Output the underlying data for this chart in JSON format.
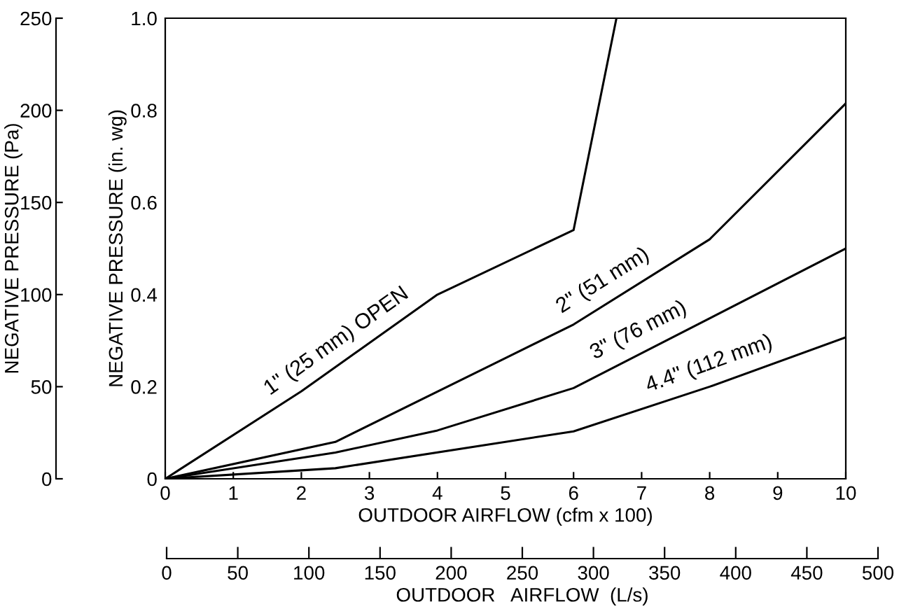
{
  "chart_data": {
    "type": "line",
    "xlabel": "OUTDOOR AIRFLOW (cfm x 100)",
    "ylabel": "NEGATIVE PRESSURE (in. wg)",
    "y2label": "NEGATIVE PRESSURE (Pa)",
    "x2label": "OUTDOOR   AIRFLOW  (L/s)",
    "series": [
      {
        "color": "#000000",
        "x": [
          0,
          2,
          4,
          6,
          6.63
        ],
        "values": [
          0,
          0.19,
          0.4,
          0.54,
          1.0
        ]
      },
      {
        "color": "#000000",
        "x": [
          0,
          2.5,
          6,
          8,
          10
        ],
        "values": [
          0,
          0.08,
          0.335,
          0.52,
          0.815
        ]
      },
      {
        "color": "#000000",
        "x": [
          0,
          2.5,
          4,
          6,
          10
        ],
        "values": [
          0,
          0.057,
          0.105,
          0.197,
          0.5
        ]
      },
      {
        "color": "#000000",
        "x": [
          0,
          2.5,
          6,
          8,
          10
        ],
        "values": [
          0,
          0.023,
          0.103,
          0.2,
          0.307
        ]
      }
    ],
    "annotations": [
      {
        "text": "1\" (25 mm) OPEN",
        "x": 2.7,
        "y": 0.26
      },
      {
        "text": "2\" (51 mm)",
        "x": 6.6,
        "y": 0.39
      },
      {
        "text": "3\" (76 mm)",
        "x": 7.1,
        "y": 0.28
      },
      {
        "text": "4.4\" (112 mm)",
        "x": 8.1,
        "y": 0.205
      }
    ],
    "xlim": [
      0,
      10
    ],
    "xticks": [
      0,
      1,
      2,
      3,
      4,
      5,
      6,
      7,
      8,
      9,
      10
    ],
    "ylim": [
      0,
      1.0
    ],
    "yticks": [
      0,
      0.2,
      0.4,
      0.6,
      0.8,
      {
        "value": 1,
        "label": "1.0"
      }
    ],
    "y2lim": [
      0,
      250
    ],
    "y2ticks": [
      0,
      50,
      100,
      150,
      200,
      250
    ],
    "x2lim": [
      0,
      500
    ],
    "x2ticks": [
      0,
      50,
      100,
      150,
      200,
      250,
      300,
      350,
      400,
      450,
      500
    ],
    "grid": false,
    "legend": false,
    "marker": "none",
    "line_style": "solid"
  }
}
